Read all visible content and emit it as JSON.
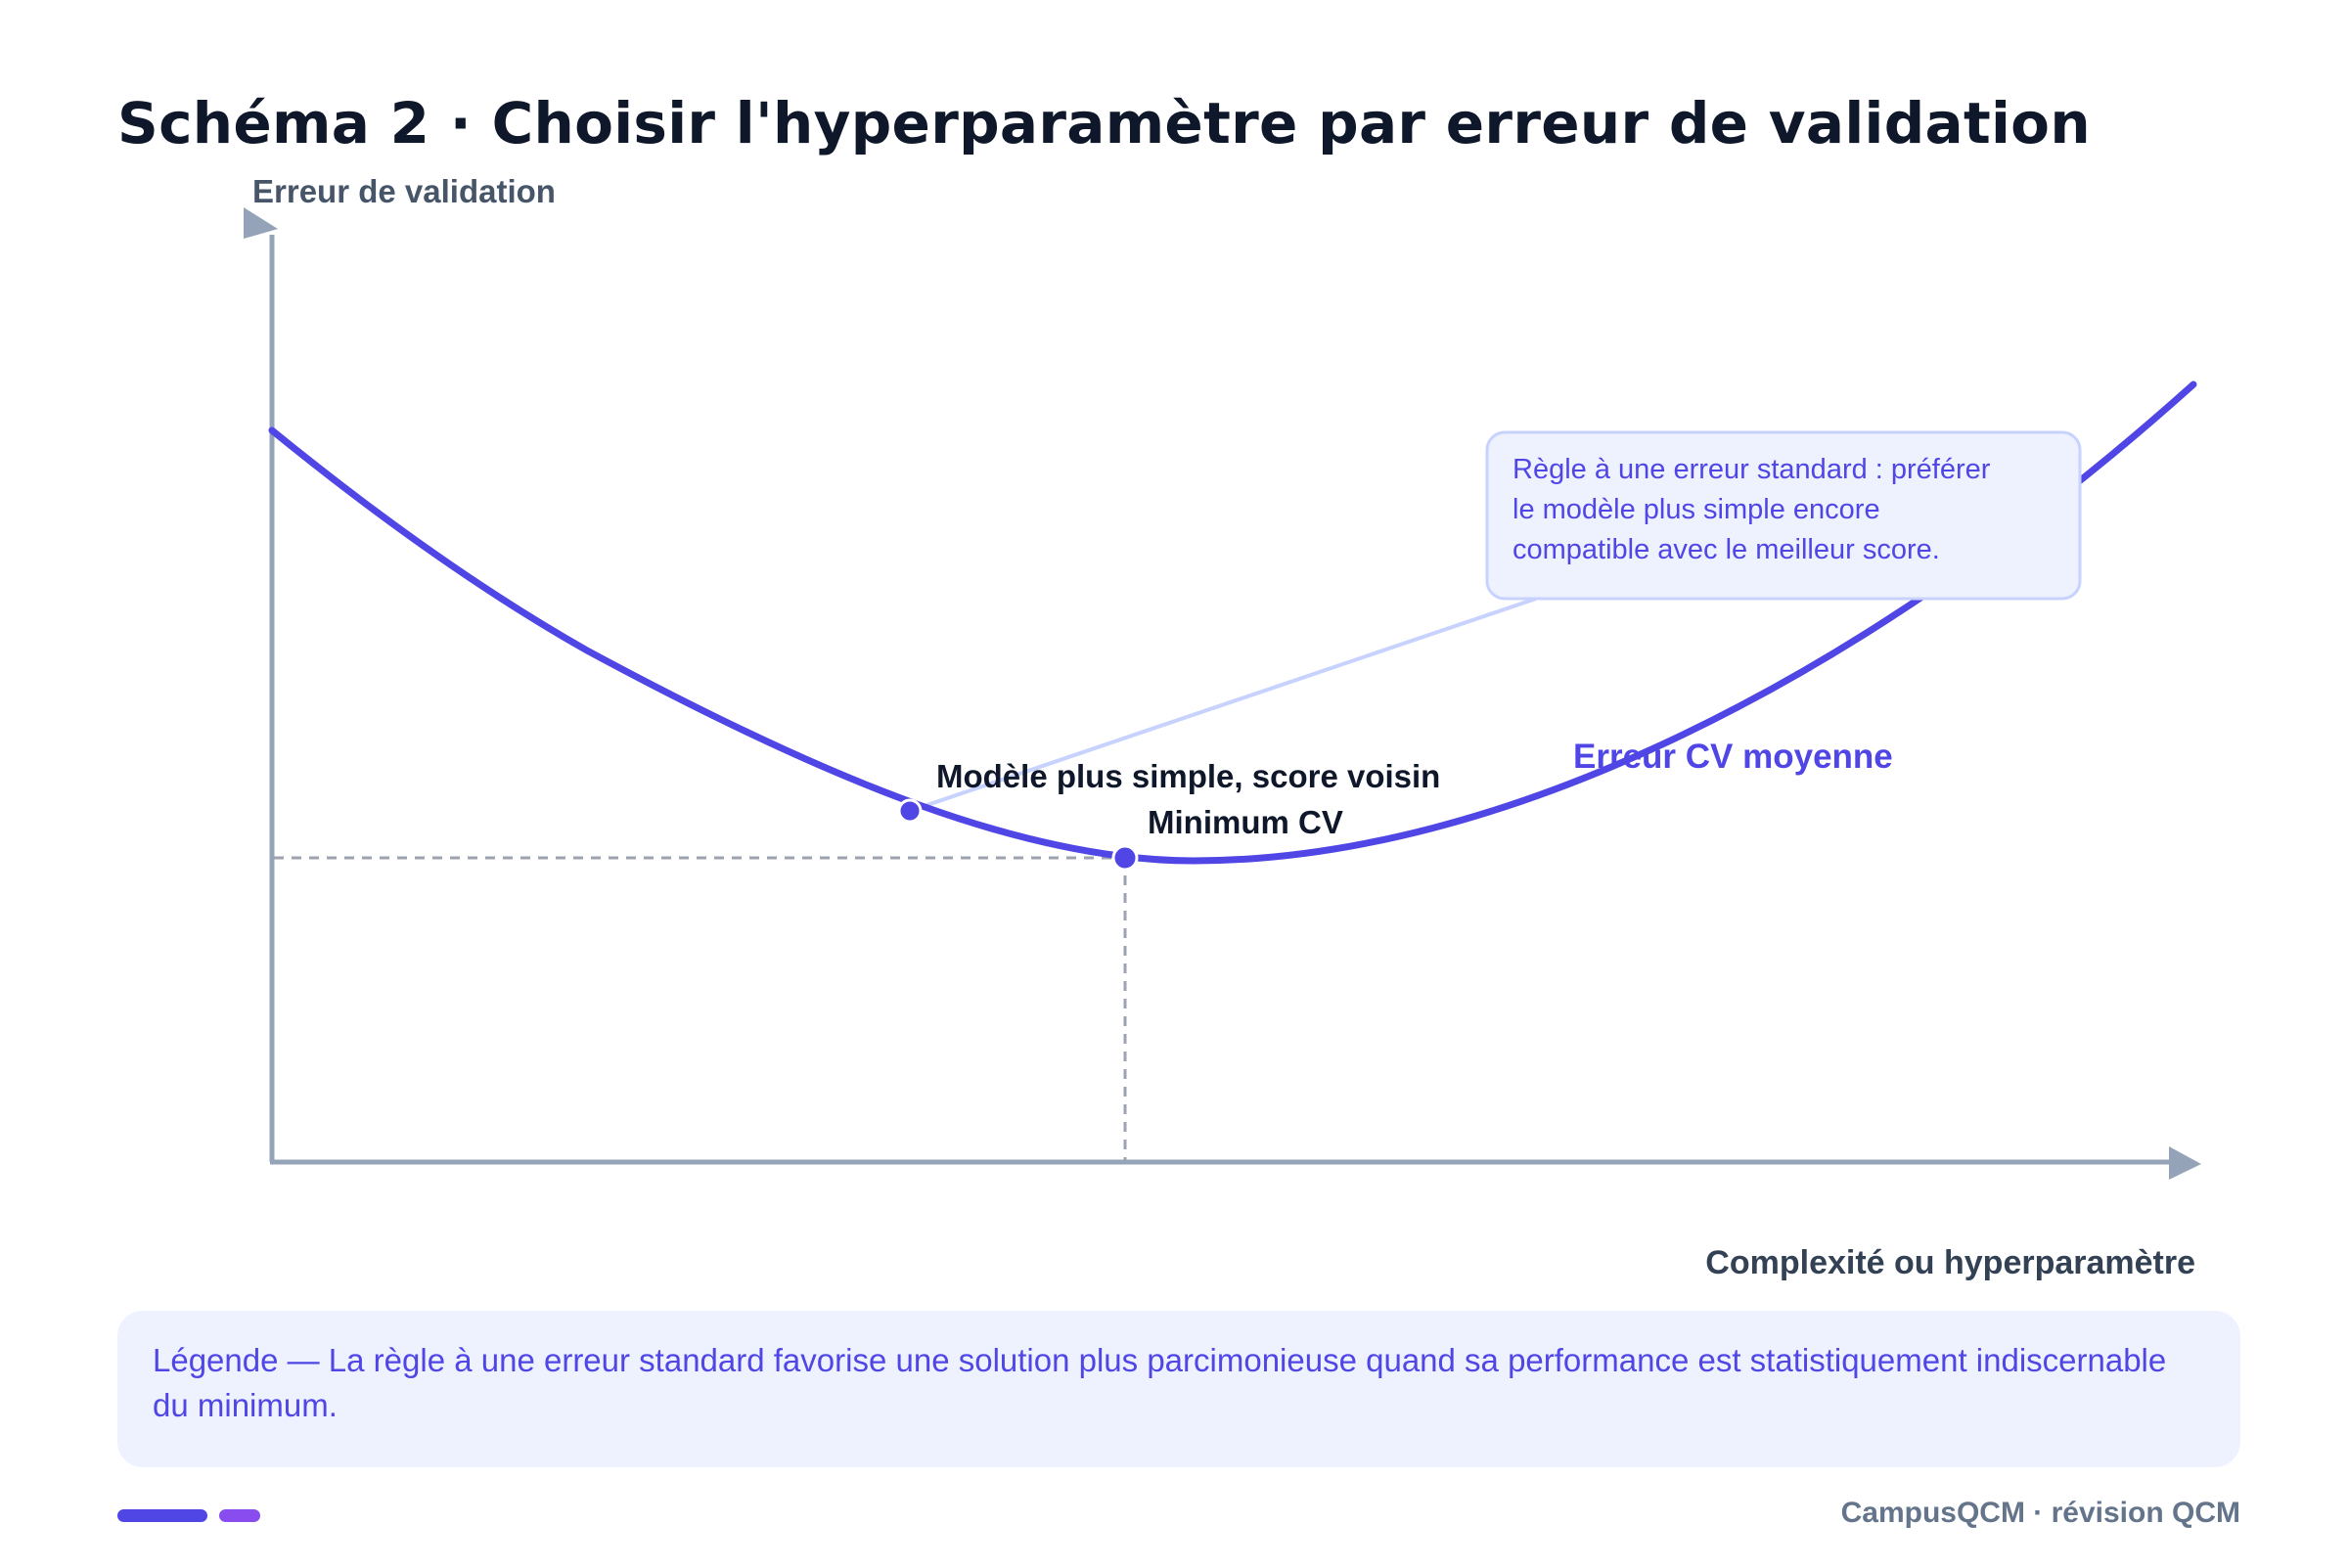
{
  "title": "Schéma 2 · Choisir l'hyperparamètre par erreur de validation",
  "axes": {
    "y_label": "Erreur de validation",
    "x_label": "Complexité ou hyperparamètre"
  },
  "curve": {
    "label": "Erreur CV moyenne",
    "color": "#4f46e5"
  },
  "points": {
    "simple_model": "Modèle plus simple, score voisin",
    "minimum": "Minimum CV"
  },
  "callout": {
    "lines": [
      "Règle à une erreur standard : préférer",
      "le modèle plus simple encore",
      "compatible avec le meilleur score."
    ]
  },
  "legend": {
    "text": "Légende — La règle à une erreur standard favorise une solution plus parcimonieuse quand sa performance est statistiquement indiscernable du minimum."
  },
  "footer": "CampusQCM · révision QCM",
  "colors": {
    "accent": "#4f46e5",
    "axis": "#94a3b8",
    "title": "#0f172a",
    "callout_bg": "#eef2ff",
    "callout_border": "#c7d2fe"
  }
}
